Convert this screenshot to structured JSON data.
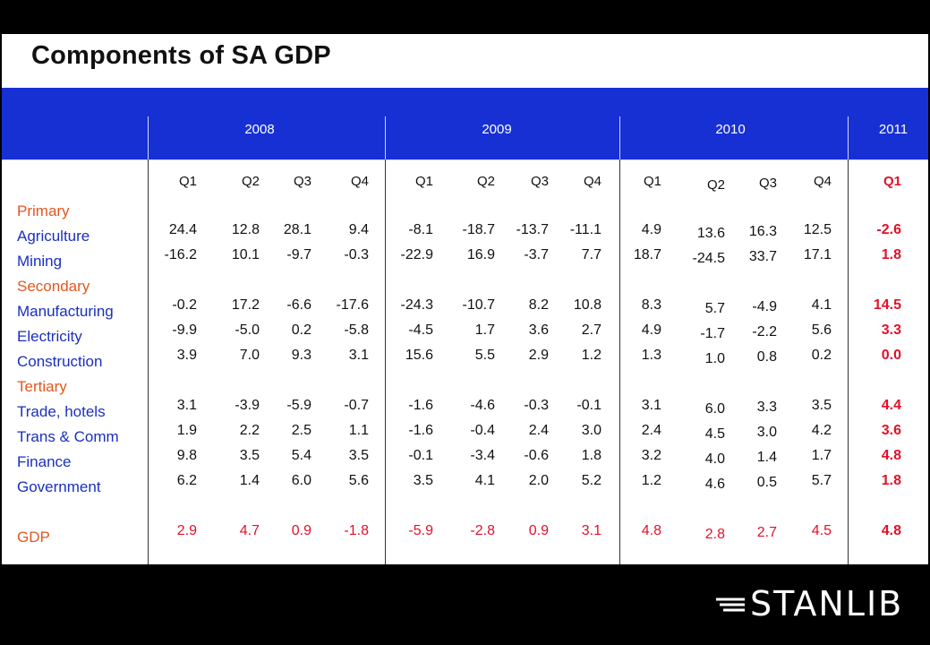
{
  "title": "Components of SA GDP",
  "brand": "STANLIB",
  "years": [
    "2008",
    "2009",
    "2010",
    "2011"
  ],
  "quarters": {
    "y2008": [
      "Q1",
      "Q2",
      "Q3",
      "Q4"
    ],
    "y2009": [
      "Q1",
      "Q2",
      "Q3",
      "Q4"
    ],
    "y2010": [
      "Q1",
      "Q2",
      "Q3",
      "Q4"
    ],
    "y2011": [
      "Q1"
    ]
  },
  "rows": [
    {
      "label": "Primary",
      "style": "orange",
      "values": null
    },
    {
      "label": "Agriculture",
      "style": "blue",
      "values": [
        "24.4",
        "12.8",
        "28.1",
        "9.4",
        "-8.1",
        "-18.7",
        "-13.7",
        "-11.1",
        "4.9",
        "13.6",
        "16.3",
        "12.5",
        "-2.6"
      ]
    },
    {
      "label": "Mining",
      "style": "blue",
      "values": [
        "-16.2",
        "10.1",
        "-9.7",
        "-0.3",
        "-22.9",
        "16.9",
        "-3.7",
        "7.7",
        "18.7",
        "-24.5",
        "33.7",
        "17.1",
        "1.8"
      ]
    },
    {
      "label": "Secondary",
      "style": "orange",
      "values": null
    },
    {
      "label": "Manufacturing",
      "style": "blue",
      "values": [
        "-0.2",
        "17.2",
        "-6.6",
        "-17.6",
        "-24.3",
        "-10.7",
        "8.2",
        "10.8",
        "8.3",
        "5.7",
        "-4.9",
        "4.1",
        "14.5"
      ]
    },
    {
      "label": "Electricity",
      "style": "blue",
      "values": [
        "-9.9",
        "-5.0",
        "0.2",
        "-5.8",
        "-4.5",
        "1.7",
        "3.6",
        "2.7",
        "4.9",
        "-1.7",
        "-2.2",
        "5.6",
        "3.3"
      ]
    },
    {
      "label": "Construction",
      "style": "blue",
      "values": [
        "3.9",
        "7.0",
        "9.3",
        "3.1",
        "15.6",
        "5.5",
        "2.9",
        "1.2",
        "1.3",
        "1.0",
        "0.8",
        "0.2",
        "0.0"
      ]
    },
    {
      "label": "Tertiary",
      "style": "orange",
      "values": null
    },
    {
      "label": "Trade, hotels",
      "style": "blue",
      "values": [
        "3.1",
        "-3.9",
        "-5.9",
        "-0.7",
        "-1.6",
        "-4.6",
        "-0.3",
        "-0.1",
        "3.1",
        "6.0",
        "3.3",
        "3.5",
        "4.4"
      ]
    },
    {
      "label": "Trans & Comm",
      "style": "blue",
      "values": [
        "1.9",
        "2.2",
        "2.5",
        "1.1",
        "-1.6",
        "-0.4",
        "2.4",
        "3.0",
        "2.4",
        "4.5",
        "3.0",
        "4.2",
        "3.6"
      ]
    },
    {
      "label": "Finance",
      "style": "blue",
      "values": [
        "9.8",
        "3.5",
        "5.4",
        "3.5",
        "-0.1",
        "-3.4",
        "-0.6",
        "1.8",
        "3.2",
        "4.0",
        "1.4",
        "1.7",
        "4.8"
      ]
    },
    {
      "label": "Government",
      "style": "blue",
      "values": [
        "6.2",
        "1.4",
        "6.0",
        "5.6",
        "3.5",
        "4.1",
        "2.0",
        "5.2",
        "1.2",
        "4.6",
        "0.5",
        "5.7",
        "1.8"
      ]
    },
    {
      "label": "GDP",
      "style": "orange",
      "values": [
        "2.9",
        "4.7",
        "0.9",
        "-1.8",
        "-5.9",
        "-2.8",
        "0.9",
        "3.1",
        "4.8",
        "2.8",
        "2.7",
        "4.5",
        "4.8"
      ]
    }
  ],
  "colors": {
    "blue_bar": "#1730d4",
    "orange_label": "#e2571e",
    "blue_label": "#1a2fc0",
    "red_value": "#e2102a"
  }
}
